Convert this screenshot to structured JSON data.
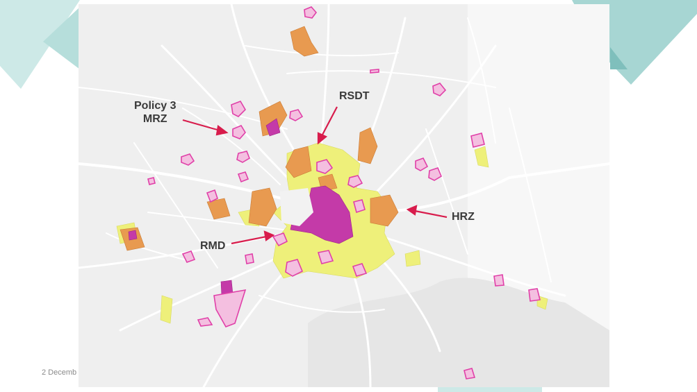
{
  "labels": {
    "policy3_line1": "Policy 3",
    "policy3_line2": "MRZ",
    "rsdt": "RSDT",
    "hrz": "HRZ",
    "rmd": "RMD"
  },
  "footer": {
    "date_fragment": "2 Decemb"
  },
  "colors": {
    "teal_decoration": "#a7d6d3",
    "teal_dark": "#7fbfbc",
    "map_background": "#efefef",
    "road": "#ffffff",
    "pink_outline": "#e040a8",
    "pink_fill": "#f4bfe0",
    "orange_zone": "#e89a50",
    "yellow_zone": "#eef07a",
    "magenta_zone": "#c43aa8",
    "arrow": "#d81c4c"
  },
  "icons": [
    "arrow-icon"
  ]
}
